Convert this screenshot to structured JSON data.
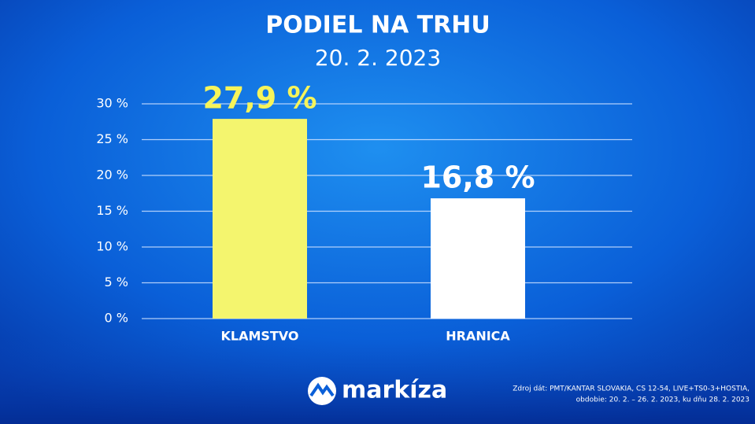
{
  "chart_data": {
    "type": "bar",
    "title": "PODIEL NA TRHU",
    "subtitle": "20. 2. 2023",
    "categories": [
      "KLAMSTVO",
      "HRANICA"
    ],
    "values": [
      27.9,
      16.8
    ],
    "value_labels": [
      "27,9 %",
      "16,8 %"
    ],
    "colors": [
      "#f4f56e",
      "#ffffff"
    ],
    "label_colors": [
      "#f6f45a",
      "#ffffff"
    ],
    "ylim": [
      0,
      30
    ],
    "yticks": [
      {
        "value": 0,
        "label": "0 %"
      },
      {
        "value": 5,
        "label": "5 %"
      },
      {
        "value": 10,
        "label": "10 %"
      },
      {
        "value": 15,
        "label": "15 %"
      },
      {
        "value": 20,
        "label": "20 %"
      },
      {
        "value": 25,
        "label": "25 %"
      },
      {
        "value": 30,
        "label": "30 %"
      }
    ],
    "grid": true
  },
  "footer": {
    "logo": "markíza",
    "source": [
      "Zdroj dát: PMT/KANTAR SLOVAKIA, CS 12-54, LIVE+TS0-3+HOSTIA,",
      "obdobie: 20. 2. – 26. 2. 2023, ku dňu 28. 2. 2023"
    ]
  }
}
